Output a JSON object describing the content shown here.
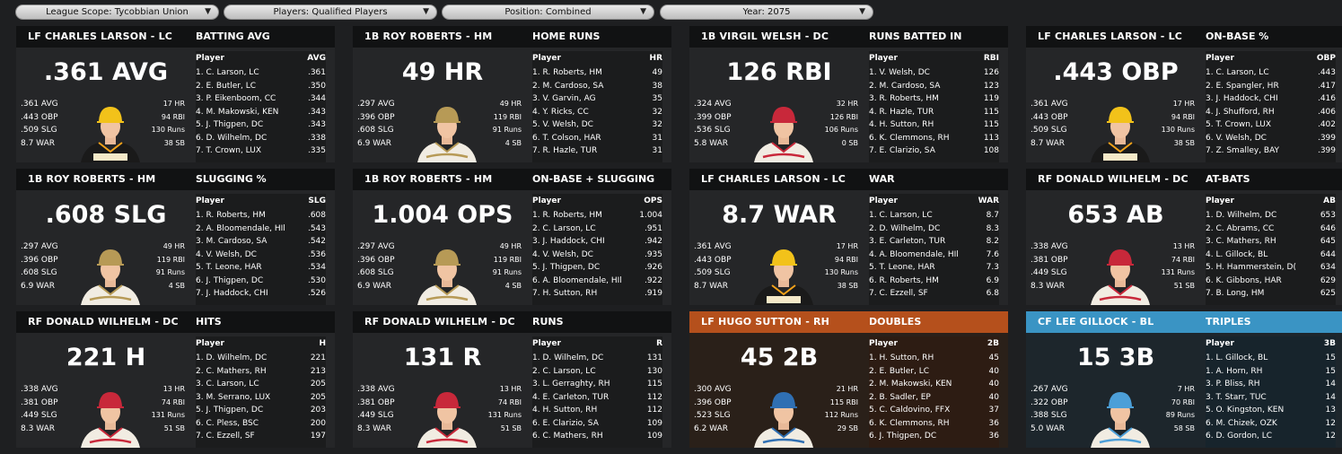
{
  "filters": [
    {
      "label": "League Scope: Tycobbian Union"
    },
    {
      "label": "Players: Qualified Players"
    },
    {
      "label": "Position: Combined"
    },
    {
      "label": "Year: 2075"
    }
  ],
  "colors": {
    "lc": "#f2c21a",
    "hm": "#b79a56",
    "dc": "#c8283a",
    "rh": "#2f6fb3",
    "bl": "#4c9fd8",
    "orange": "#b5501c",
    "blue": "#3a94c4"
  },
  "cards": [
    {
      "player": "LF CHARLES LARSON - LC",
      "category": "BATTING AVG",
      "big": ".361 AVG",
      "team": "lc",
      "stats": {
        "avg": ".361 AVG",
        "obp": ".443 OBP",
        "slg": ".509 SLG",
        "war": "8.7 WAR",
        "hr": "17 HR",
        "rbi": "94 RBI",
        "runs": "130 Runs",
        "sb": "38 SB"
      },
      "col1": "Player",
      "col2": "AVG",
      "leaders": [
        {
          "name": "1. C. Larson, LC",
          "val": ".361"
        },
        {
          "name": "2. E. Butler, LC",
          "val": ".350"
        },
        {
          "name": "3. P. Eikenboom, CC",
          "val": ".344"
        },
        {
          "name": "4. M. Makowski, KEN",
          "val": ".343"
        },
        {
          "name": "5. J. Thigpen, DC",
          "val": ".343"
        },
        {
          "name": "6. D. Wilhelm, DC",
          "val": ".338"
        },
        {
          "name": "7. T. Crown, LUX",
          "val": ".335"
        }
      ]
    },
    {
      "player": "1B ROY ROBERTS - HM",
      "category": "HOME RUNS",
      "big": "49 HR",
      "team": "hm",
      "stats": {
        "avg": ".297 AVG",
        "obp": ".396 OBP",
        "slg": ".608 SLG",
        "war": "6.9 WAR",
        "hr": "49 HR",
        "rbi": "119 RBI",
        "runs": "91 Runs",
        "sb": "4 SB"
      },
      "col1": "Player",
      "col2": "HR",
      "leaders": [
        {
          "name": "1. R. Roberts, HM",
          "val": "49"
        },
        {
          "name": "2. M. Cardoso, SA",
          "val": "38"
        },
        {
          "name": "3. V. Garvin, AG",
          "val": "35"
        },
        {
          "name": "4. Y. Ricks, CC",
          "val": "32"
        },
        {
          "name": "5. V. Welsh, DC",
          "val": "32"
        },
        {
          "name": "6. T. Colson, HAR",
          "val": "31"
        },
        {
          "name": "7. R. Hazle, TUR",
          "val": "31"
        }
      ]
    },
    {
      "player": "1B VIRGIL WELSH - DC",
      "category": "RUNS BATTED IN",
      "big": "126 RBI",
      "team": "dc",
      "stats": {
        "avg": ".324 AVG",
        "obp": ".399 OBP",
        "slg": ".536 SLG",
        "war": "5.8 WAR",
        "hr": "32 HR",
        "rbi": "126 RBI",
        "runs": "106 Runs",
        "sb": "0 SB"
      },
      "col1": "Player",
      "col2": "RBI",
      "leaders": [
        {
          "name": "1. V. Welsh, DC",
          "val": "126"
        },
        {
          "name": "2. M. Cardoso, SA",
          "val": "123"
        },
        {
          "name": "3. R. Roberts, HM",
          "val": "119"
        },
        {
          "name": "4. R. Hazle, TUR",
          "val": "115"
        },
        {
          "name": "4. H. Sutton, RH",
          "val": "115"
        },
        {
          "name": "6. K. Clemmons, RH",
          "val": "113"
        },
        {
          "name": "7. E. Clarizio, SA",
          "val": "108"
        }
      ]
    },
    {
      "player": "LF CHARLES LARSON - LC",
      "category": "ON-BASE %",
      "big": ".443 OBP",
      "team": "lc",
      "stats": {
        "avg": ".361 AVG",
        "obp": ".443 OBP",
        "slg": ".509 SLG",
        "war": "8.7 WAR",
        "hr": "17 HR",
        "rbi": "94 RBI",
        "runs": "130 Runs",
        "sb": "38 SB"
      },
      "col1": "Player",
      "col2": "OBP",
      "leaders": [
        {
          "name": "1. C. Larson, LC",
          "val": ".443"
        },
        {
          "name": "2. E. Spangler, HR",
          "val": ".417"
        },
        {
          "name": "3. J. Haddock, CHI",
          "val": ".416"
        },
        {
          "name": "4. J. Shufford, RH",
          "val": ".406"
        },
        {
          "name": "5. T. Crown, LUX",
          "val": ".402"
        },
        {
          "name": "6. V. Welsh, DC",
          "val": ".399"
        },
        {
          "name": "7. Z. Smalley, BAY",
          "val": ".399"
        }
      ]
    },
    {
      "player": "1B ROY ROBERTS - HM",
      "category": "SLUGGING %",
      "big": ".608 SLG",
      "team": "hm",
      "stats": {
        "avg": ".297 AVG",
        "obp": ".396 OBP",
        "slg": ".608 SLG",
        "war": "6.9 WAR",
        "hr": "49 HR",
        "rbi": "119 RBI",
        "runs": "91 Runs",
        "sb": "4 SB"
      },
      "col1": "Player",
      "col2": "SLG",
      "leaders": [
        {
          "name": "1. R. Roberts, HM",
          "val": ".608"
        },
        {
          "name": "2. A. Bloomendale, HIl",
          "val": ".543"
        },
        {
          "name": "3. M. Cardoso, SA",
          "val": ".542"
        },
        {
          "name": "4. V. Welsh, DC",
          "val": ".536"
        },
        {
          "name": "5. T. Leone, HAR",
          "val": ".534"
        },
        {
          "name": "6. J. Thigpen, DC",
          "val": ".530"
        },
        {
          "name": "7. J. Haddock, CHI",
          "val": ".526"
        }
      ]
    },
    {
      "player": "1B ROY ROBERTS - HM",
      "category": "ON-BASE + SLUGGING",
      "big": "1.004 OPS",
      "team": "hm",
      "stats": {
        "avg": ".297 AVG",
        "obp": ".396 OBP",
        "slg": ".608 SLG",
        "war": "6.9 WAR",
        "hr": "49 HR",
        "rbi": "119 RBI",
        "runs": "91 Runs",
        "sb": "4 SB"
      },
      "col1": "Player",
      "col2": "OPS",
      "leaders": [
        {
          "name": "1. R. Roberts, HM",
          "val": "1.004"
        },
        {
          "name": "2. C. Larson, LC",
          "val": ".951"
        },
        {
          "name": "3. J. Haddock, CHI",
          "val": ".942"
        },
        {
          "name": "4. V. Welsh, DC",
          "val": ".935"
        },
        {
          "name": "5. J. Thigpen, DC",
          "val": ".926"
        },
        {
          "name": "6. A. Bloomendale, HIl",
          "val": ".922"
        },
        {
          "name": "7. H. Sutton, RH",
          "val": ".919"
        }
      ]
    },
    {
      "player": "LF CHARLES LARSON - LC",
      "category": "WAR",
      "big": "8.7 WAR",
      "team": "lc",
      "stats": {
        "avg": ".361 AVG",
        "obp": ".443 OBP",
        "slg": ".509 SLG",
        "war": "8.7 WAR",
        "hr": "17 HR",
        "rbi": "94 RBI",
        "runs": "130 Runs",
        "sb": "38 SB"
      },
      "col1": "Player",
      "col2": "WAR",
      "leaders": [
        {
          "name": "1. C. Larson, LC",
          "val": "8.7"
        },
        {
          "name": "2. D. Wilhelm, DC",
          "val": "8.3"
        },
        {
          "name": "3. E. Carleton, TUR",
          "val": "8.2"
        },
        {
          "name": "4. A. Bloomendale, HIl",
          "val": "7.6"
        },
        {
          "name": "5. T. Leone, HAR",
          "val": "7.3"
        },
        {
          "name": "6. R. Roberts, HM",
          "val": "6.9"
        },
        {
          "name": "7. C. Ezzell, SF",
          "val": "6.8"
        }
      ]
    },
    {
      "player": "RF DONALD WILHELM - DC",
      "category": "AT-BATS",
      "big": "653 AB",
      "team": "dc",
      "stats": {
        "avg": ".338 AVG",
        "obp": ".381 OBP",
        "slg": ".449 SLG",
        "war": "8.3 WAR",
        "hr": "13 HR",
        "rbi": "74 RBI",
        "runs": "131 Runs",
        "sb": "51 SB"
      },
      "col1": "Player",
      "col2": "AB",
      "leaders": [
        {
          "name": "1. D. Wilhelm, DC",
          "val": "653"
        },
        {
          "name": "2. C. Abrams, CC",
          "val": "646"
        },
        {
          "name": "3. C. Mathers, RH",
          "val": "645"
        },
        {
          "name": "4. L. Gillock, BL",
          "val": "644"
        },
        {
          "name": "5. H. Hammerstein, D(",
          "val": "634"
        },
        {
          "name": "6. K. Gibbons, HAR",
          "val": "629"
        },
        {
          "name": "7. B. Long, HM",
          "val": "625"
        }
      ]
    },
    {
      "player": "RF DONALD WILHELM - DC",
      "category": "HITS",
      "big": "221 H",
      "team": "dc",
      "stats": {
        "avg": ".338 AVG",
        "obp": ".381 OBP",
        "slg": ".449 SLG",
        "war": "8.3 WAR",
        "hr": "13 HR",
        "rbi": "74 RBI",
        "runs": "131 Runs",
        "sb": "51 SB"
      },
      "col1": "Player",
      "col2": "H",
      "leaders": [
        {
          "name": "1. D. Wilhelm, DC",
          "val": "221"
        },
        {
          "name": "2. C. Mathers, RH",
          "val": "213"
        },
        {
          "name": "3. C. Larson, LC",
          "val": "205"
        },
        {
          "name": "3. M. Serrano, LUX",
          "val": "205"
        },
        {
          "name": "5. J. Thigpen, DC",
          "val": "203"
        },
        {
          "name": "6. C. Pless, BSC",
          "val": "200"
        },
        {
          "name": "7. C. Ezzell, SF",
          "val": "197"
        }
      ]
    },
    {
      "player": "RF DONALD WILHELM - DC",
      "category": "RUNS",
      "big": "131 R",
      "team": "dc",
      "stats": {
        "avg": ".338 AVG",
        "obp": ".381 OBP",
        "slg": ".449 SLG",
        "war": "8.3 WAR",
        "hr": "13 HR",
        "rbi": "74 RBI",
        "runs": "131 Runs",
        "sb": "51 SB"
      },
      "col1": "Player",
      "col2": "R",
      "leaders": [
        {
          "name": "1. D. Wilhelm, DC",
          "val": "131"
        },
        {
          "name": "2. C. Larson, LC",
          "val": "130"
        },
        {
          "name": "3. L. Gerraghty, RH",
          "val": "115"
        },
        {
          "name": "4. E. Carleton, TUR",
          "val": "112"
        },
        {
          "name": "4. H. Sutton, RH",
          "val": "112"
        },
        {
          "name": "6. E. Clarizio, SA",
          "val": "109"
        },
        {
          "name": "6. C. Mathers, RH",
          "val": "109"
        }
      ]
    },
    {
      "player": "LF HUGO SUTTON - RH",
      "category": "DOUBLES",
      "big": "45 2B",
      "team": "rh",
      "accent": "orange",
      "stats": {
        "avg": ".300 AVG",
        "obp": ".396 OBP",
        "slg": ".523 SLG",
        "war": "6.2 WAR",
        "hr": "21 HR",
        "rbi": "115 RBI",
        "runs": "112 Runs",
        "sb": "29 SB"
      },
      "col1": "Player",
      "col2": "2B",
      "leaders": [
        {
          "name": "1. H. Sutton, RH",
          "val": "45"
        },
        {
          "name": "2. E. Butler, LC",
          "val": "40"
        },
        {
          "name": "2. M. Makowski, KEN",
          "val": "40"
        },
        {
          "name": "2. B. Sadler, EP",
          "val": "40"
        },
        {
          "name": "5. C. Caldovino, FFX",
          "val": "37"
        },
        {
          "name": "6. K. Clemmons, RH",
          "val": "36"
        },
        {
          "name": "6. J. Thigpen, DC",
          "val": "36"
        }
      ]
    },
    {
      "player": "CF LEE GILLOCK - BL",
      "category": "TRIPLES",
      "big": "15 3B",
      "team": "bl",
      "accent": "blue",
      "stats": {
        "avg": ".267 AVG",
        "obp": ".322 OBP",
        "slg": ".388 SLG",
        "war": "5.0 WAR",
        "hr": "7 HR",
        "rbi": "70 RBI",
        "runs": "89 Runs",
        "sb": "58 SB"
      },
      "col1": "Player",
      "col2": "3B",
      "leaders": [
        {
          "name": "1. L. Gillock, BL",
          "val": "15"
        },
        {
          "name": "1. A. Horn, RH",
          "val": "15"
        },
        {
          "name": "3. P. Bliss, RH",
          "val": "14"
        },
        {
          "name": "3. T. Starr, TUC",
          "val": "14"
        },
        {
          "name": "5. O. Kingston, KEN",
          "val": "13"
        },
        {
          "name": "6. M. Chizek, OZK",
          "val": "12"
        },
        {
          "name": "6. D. Gordon, LC",
          "val": "12"
        }
      ]
    }
  ]
}
